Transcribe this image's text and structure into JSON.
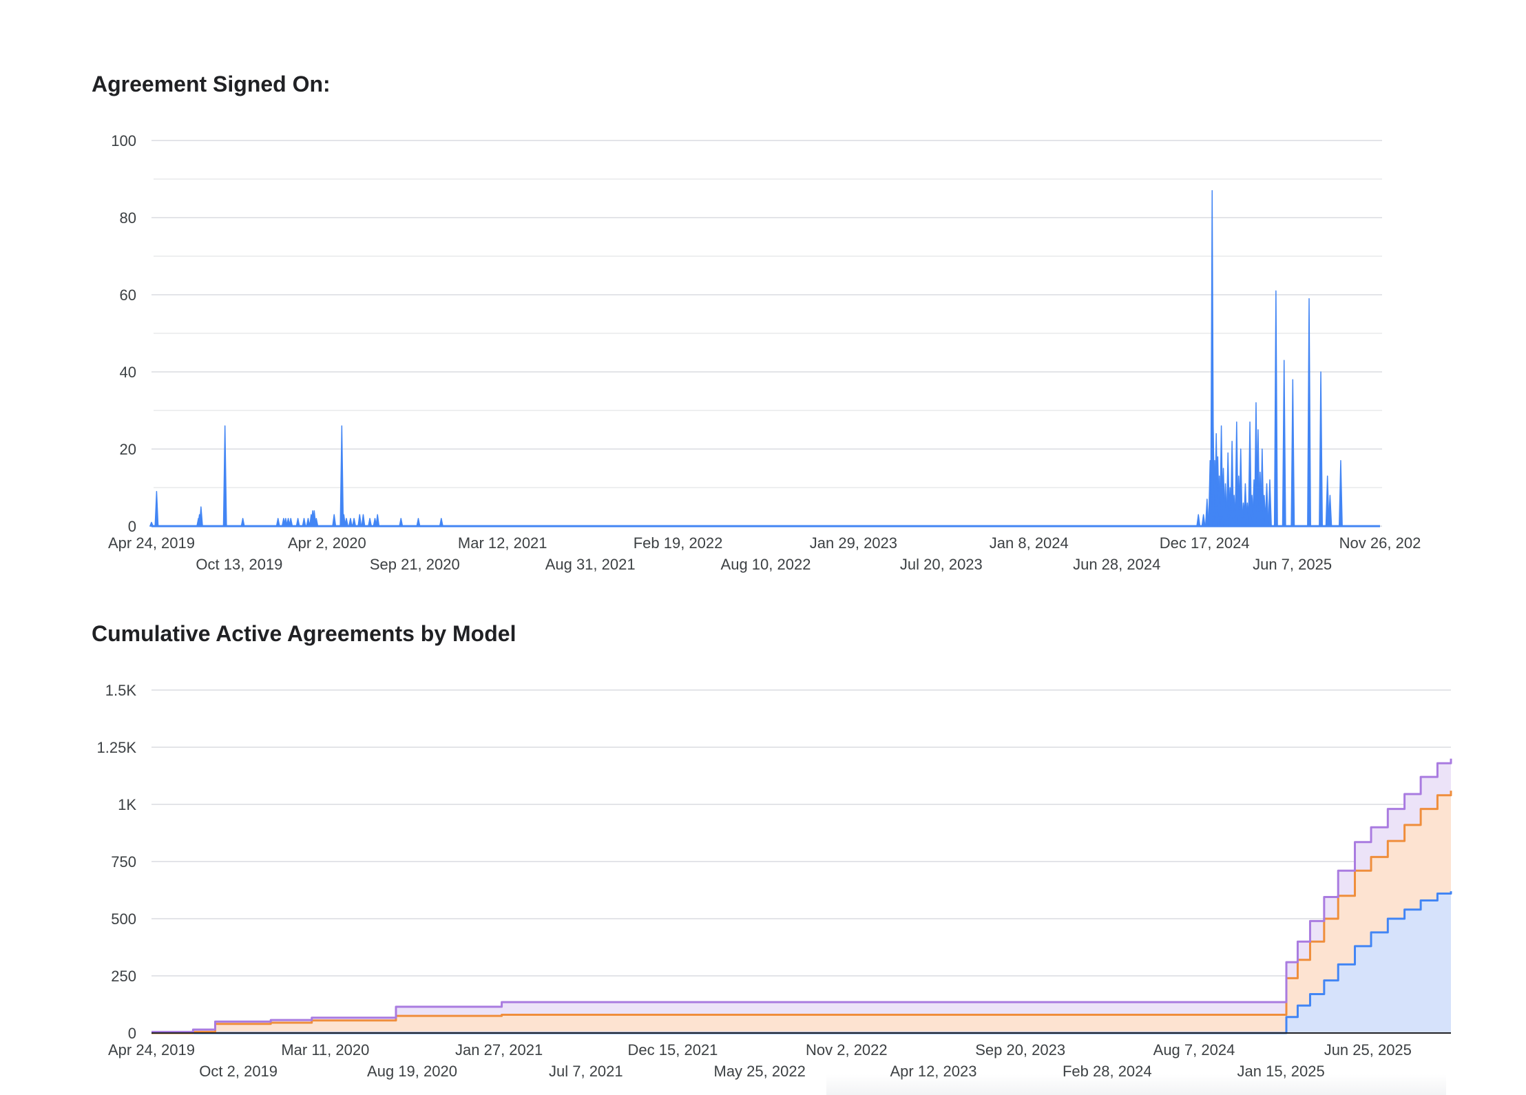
{
  "colors": {
    "blue": "#4285f4",
    "orange": "#ef8e3c",
    "purple": "#a97be0",
    "blue_fill": "#d6e2fb",
    "orange_fill": "#fde3d1",
    "purple_fill": "#ece3f8"
  },
  "chart_data": [
    {
      "type": "bar",
      "title": "Agreement Signed On:",
      "x_type": "date",
      "x_range": [
        "2019-04-24",
        "2025-11-26"
      ],
      "ylim": [
        0,
        100
      ],
      "y_ticks": [
        "0",
        "20",
        "40",
        "60",
        "80",
        "100"
      ],
      "x_ticks_row1": [
        "Apr 24, 2019",
        "Apr 2, 2020",
        "Mar 12, 2021",
        "Feb 19, 2022",
        "Jan 29, 2023",
        "Jan 8, 2024",
        "Dec 17, 2024",
        "Nov 26, 202"
      ],
      "x_ticks_row2": [
        "Oct 13, 2019",
        "Sep 21, 2020",
        "Aug 31, 2021",
        "Aug 10, 2022",
        "Jul 20, 2023",
        "Jun 28, 2024",
        "Jun 7, 2025"
      ],
      "grid": true,
      "series": [
        {
          "color": "#4285f4",
          "points": [
            [
              "2019-04-24",
              1
            ],
            [
              "2019-05-04",
              9
            ],
            [
              "2019-07-25",
              2
            ],
            [
              "2019-07-27",
              3
            ],
            [
              "2019-07-30",
              5
            ],
            [
              "2019-09-15",
              26
            ],
            [
              "2019-10-20",
              2
            ],
            [
              "2019-12-28",
              2
            ],
            [
              "2020-01-08",
              2
            ],
            [
              "2020-01-12",
              2
            ],
            [
              "2020-01-17",
              2
            ],
            [
              "2020-01-22",
              2
            ],
            [
              "2020-02-05",
              2
            ],
            [
              "2020-02-17",
              2
            ],
            [
              "2020-02-25",
              2
            ],
            [
              "2020-03-02",
              3
            ],
            [
              "2020-03-05",
              4
            ],
            [
              "2020-03-08",
              4
            ],
            [
              "2020-03-12",
              2
            ],
            [
              "2020-04-16",
              3
            ],
            [
              "2020-05-01",
              26
            ],
            [
              "2020-05-05",
              3
            ],
            [
              "2020-05-10",
              2
            ],
            [
              "2020-05-18",
              2
            ],
            [
              "2020-05-25",
              2
            ],
            [
              "2020-06-05",
              3
            ],
            [
              "2020-06-12",
              3
            ],
            [
              "2020-06-25",
              2
            ],
            [
              "2020-07-05",
              2
            ],
            [
              "2020-07-10",
              3
            ],
            [
              "2020-08-25",
              2
            ],
            [
              "2020-09-28",
              2
            ],
            [
              "2020-11-12",
              2
            ],
            [
              "2024-12-05",
              3
            ],
            [
              "2024-12-15",
              3
            ],
            [
              "2024-12-22",
              7
            ],
            [
              "2024-12-28",
              17
            ],
            [
              "2025-01-01",
              87
            ],
            [
              "2025-01-03",
              26
            ],
            [
              "2025-01-06",
              17
            ],
            [
              "2025-01-09",
              24
            ],
            [
              "2025-01-12",
              18
            ],
            [
              "2025-01-15",
              13
            ],
            [
              "2025-01-19",
              26
            ],
            [
              "2025-01-23",
              15
            ],
            [
              "2025-01-27",
              11
            ],
            [
              "2025-02-01",
              19
            ],
            [
              "2025-02-05",
              10
            ],
            [
              "2025-02-09",
              22
            ],
            [
              "2025-02-13",
              8
            ],
            [
              "2025-02-18",
              27
            ],
            [
              "2025-02-22",
              13
            ],
            [
              "2025-02-26",
              20
            ],
            [
              "2025-03-03",
              6
            ],
            [
              "2025-03-07",
              11
            ],
            [
              "2025-03-11",
              6
            ],
            [
              "2025-03-16",
              27
            ],
            [
              "2025-03-20",
              8
            ],
            [
              "2025-03-24",
              12
            ],
            [
              "2025-03-28",
              32
            ],
            [
              "2025-04-01",
              25
            ],
            [
              "2025-04-05",
              14
            ],
            [
              "2025-04-09",
              20
            ],
            [
              "2025-04-13",
              8
            ],
            [
              "2025-04-18",
              11
            ],
            [
              "2025-04-24",
              12
            ],
            [
              "2025-05-06",
              61
            ],
            [
              "2025-05-22",
              43
            ],
            [
              "2025-06-08",
              38
            ],
            [
              "2025-07-10",
              59
            ],
            [
              "2025-08-02",
              40
            ],
            [
              "2025-08-15",
              13
            ],
            [
              "2025-08-20",
              8
            ],
            [
              "2025-09-10",
              17
            ]
          ]
        }
      ]
    },
    {
      "type": "area",
      "title": "Cumulative Active Agreements by Model",
      "x_type": "date",
      "x_range": [
        "2019-04-24",
        "2025-11-26"
      ],
      "ylim": [
        0,
        1500
      ],
      "y_ticks": [
        "0",
        "250",
        "500",
        "750",
        "1K",
        "1.25K",
        "1.5K"
      ],
      "x_ticks_row1": [
        "Apr 24, 2019",
        "Mar 11, 2020",
        "Jan 27, 2021",
        "Dec 15, 2021",
        "Nov 2, 2022",
        "Sep 20, 2023",
        "Aug 7, 2024",
        "Jun 25, 2025"
      ],
      "x_ticks_row2": [
        "Oct 2, 2019",
        "Aug 19, 2020",
        "Jul 7, 2021",
        "May 25, 2022",
        "Apr 12, 2023",
        "Feb 28, 2024",
        "Jan 15, 2025"
      ],
      "stacked": true,
      "grid": true,
      "series": [
        {
          "color": "#4285f4",
          "fill": "#d6e2fb",
          "points": [
            [
              "2019-04-24",
              0
            ],
            [
              "2025-01-18",
              0
            ],
            [
              "2025-01-25",
              70
            ],
            [
              "2025-02-15",
              120
            ],
            [
              "2025-03-10",
              170
            ],
            [
              "2025-04-05",
              230
            ],
            [
              "2025-05-01",
              300
            ],
            [
              "2025-06-01",
              380
            ],
            [
              "2025-07-01",
              440
            ],
            [
              "2025-08-01",
              500
            ],
            [
              "2025-09-01",
              540
            ],
            [
              "2025-10-01",
              580
            ],
            [
              "2025-11-01",
              610
            ],
            [
              "2025-11-26",
              620
            ]
          ]
        },
        {
          "color": "#ef8e3c",
          "fill": "#fde3d1",
          "points": [
            [
              "2019-04-24",
              0
            ],
            [
              "2019-07-10",
              5
            ],
            [
              "2019-08-20",
              40
            ],
            [
              "2019-12-01",
              45
            ],
            [
              "2020-02-15",
              55
            ],
            [
              "2020-07-20",
              75
            ],
            [
              "2021-02-01",
              80
            ],
            [
              "2025-01-10",
              80
            ],
            [
              "2025-01-25",
              170
            ],
            [
              "2025-02-15",
              200
            ],
            [
              "2025-03-10",
              230
            ],
            [
              "2025-04-05",
              270
            ],
            [
              "2025-05-01",
              300
            ],
            [
              "2025-06-01",
              330
            ],
            [
              "2025-07-01",
              330
            ],
            [
              "2025-08-01",
              340
            ],
            [
              "2025-09-01",
              370
            ],
            [
              "2025-10-01",
              400
            ],
            [
              "2025-11-01",
              430
            ],
            [
              "2025-11-26",
              440
            ]
          ]
        },
        {
          "color": "#a97be0",
          "fill": "#ece3f8",
          "points": [
            [
              "2019-04-24",
              5
            ],
            [
              "2019-07-10",
              10
            ],
            [
              "2019-08-20",
              10
            ],
            [
              "2019-12-01",
              12
            ],
            [
              "2020-02-15",
              12
            ],
            [
              "2020-07-20",
              40
            ],
            [
              "2021-02-01",
              55
            ],
            [
              "2025-01-10",
              55
            ],
            [
              "2025-01-25",
              70
            ],
            [
              "2025-02-15",
              80
            ],
            [
              "2025-03-10",
              90
            ],
            [
              "2025-04-05",
              95
            ],
            [
              "2025-05-01",
              110
            ],
            [
              "2025-06-01",
              125
            ],
            [
              "2025-07-01",
              130
            ],
            [
              "2025-08-01",
              140
            ],
            [
              "2025-09-01",
              135
            ],
            [
              "2025-10-01",
              140
            ],
            [
              "2025-11-01",
              140
            ],
            [
              "2025-11-26",
              140
            ]
          ]
        }
      ]
    }
  ]
}
